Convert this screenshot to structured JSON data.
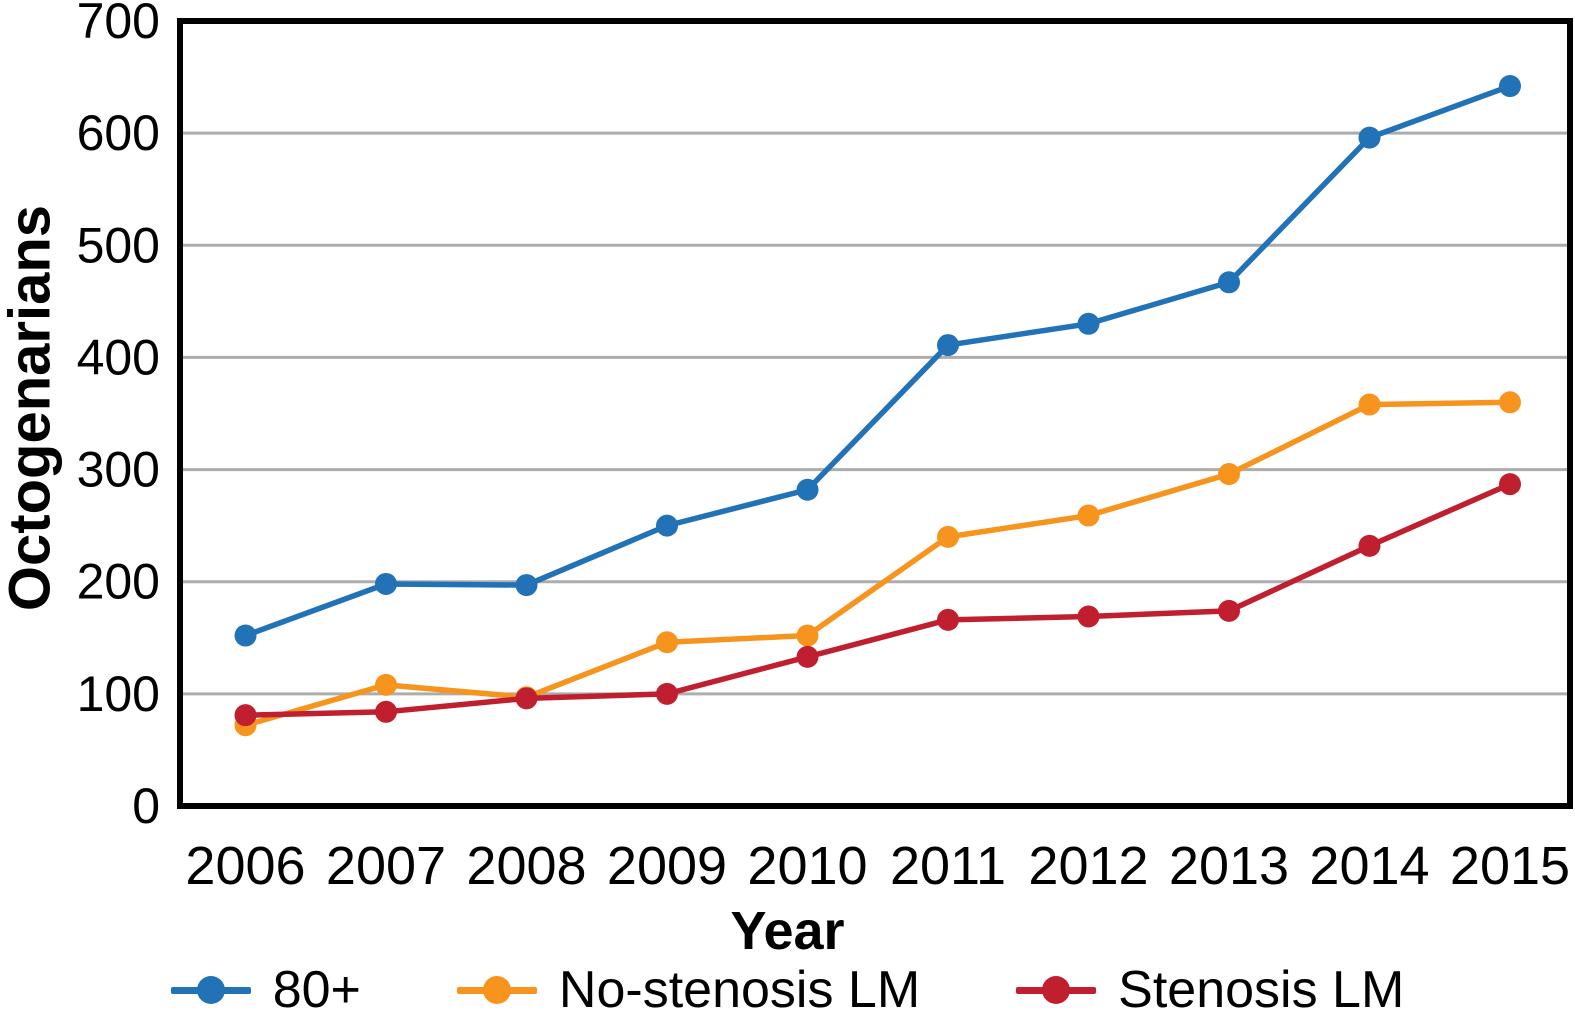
{
  "page": {
    "background": "#FFFFFF"
  },
  "chart_data": {
    "type": "line",
    "title": "",
    "xlabel": "Year",
    "ylabel": "Octogenarians",
    "categories": [
      "2006",
      "2007",
      "2008",
      "2009",
      "2010",
      "2011",
      "2012",
      "2013",
      "2014",
      "2015"
    ],
    "ylim": [
      0,
      700
    ],
    "ytick_step": 100,
    "ytick_labels": [
      "0",
      "100",
      "200",
      "300",
      "400",
      "500",
      "600",
      "700"
    ],
    "grid": "horizontal",
    "gridline_color": "#ADADAD",
    "axis_color": "#000000",
    "legend_position": "bottom-center",
    "series": [
      {
        "name": "80+",
        "color": "#2172B6",
        "values": [
          152,
          198,
          197,
          250,
          282,
          411,
          430,
          467,
          596,
          642
        ]
      },
      {
        "name": "No-stenosis LM",
        "color": "#F7941E",
        "values": [
          72,
          108,
          97,
          146,
          152,
          240,
          259,
          296,
          358,
          360
        ]
      },
      {
        "name": "Stenosis LM",
        "color": "#C01F2F",
        "values": [
          81,
          84,
          96,
          100,
          133,
          166,
          169,
          174,
          232,
          287
        ]
      }
    ]
  }
}
